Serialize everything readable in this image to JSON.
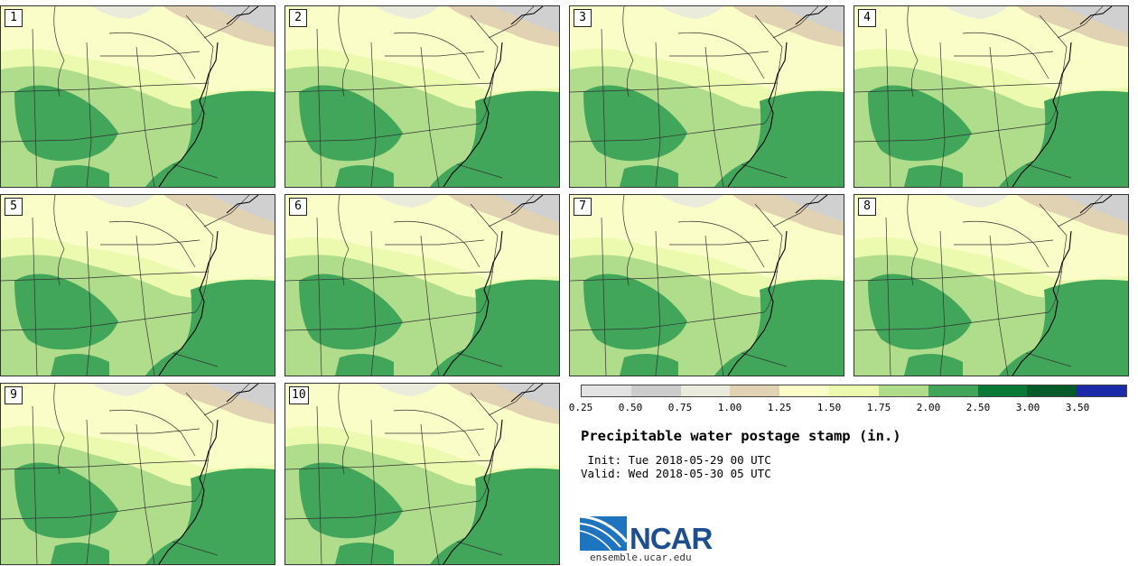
{
  "panels": [
    {
      "label": "1"
    },
    {
      "label": "2"
    },
    {
      "label": "3"
    },
    {
      "label": "4"
    },
    {
      "label": "5"
    },
    {
      "label": "6"
    },
    {
      "label": "7"
    },
    {
      "label": "8"
    },
    {
      "label": "9"
    },
    {
      "label": "10"
    }
  ],
  "colorbar": {
    "colors": [
      "#e3e3e3",
      "#cccccc",
      "#ebebdc",
      "#e0d2b2",
      "#fbfdc8",
      "#ecfab0",
      "#b0dd8c",
      "#41a55a",
      "#0c7a37",
      "#035a2a",
      "#1a2aa8"
    ],
    "ticks": [
      "0.25",
      "0.50",
      "0.75",
      "1.00",
      "1.25",
      "1.50",
      "1.75",
      "2.00",
      "2.50",
      "3.00",
      "3.50"
    ]
  },
  "title": "Precipitable water postage stamp (in.)",
  "init_line": " Init: Tue 2018-05-29 00 UTC",
  "valid_line": "Valid: Wed 2018-05-30 05 UTC",
  "logo": {
    "text": "NCAR",
    "url": "ensemble.ucar.edu",
    "color": "#1d4f8e"
  }
}
